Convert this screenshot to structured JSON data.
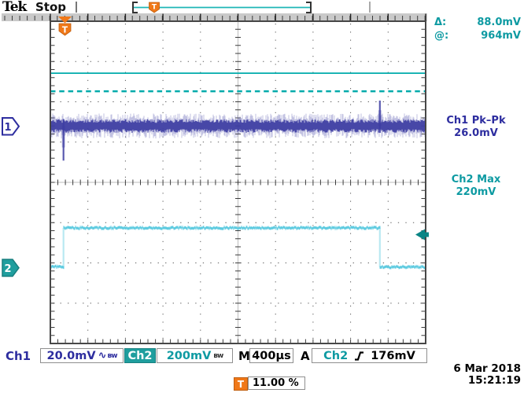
{
  "header": {
    "logo": "Tek",
    "status": "Stop",
    "record_trigger_label": "T"
  },
  "cursor_readout": {
    "delta_label": "Δ:",
    "delta_value": "88.0mV",
    "at_label": "@:",
    "at_value": "964mV"
  },
  "measurements": {
    "ch1_label": "Ch1 Pk–Pk",
    "ch1_value": "26.0mV",
    "ch2_label": "Ch2 Max",
    "ch2_value": "220mV"
  },
  "channel_badges": {
    "ch1": "1",
    "ch2": "2"
  },
  "trigger_flag_label": "T",
  "status_bar": {
    "ch1_name": "Ch1",
    "ch1_scale": "20.0mV",
    "ch1_coupling_icon": "∿",
    "ch1_bandwidth_icon": "ʙᴡ",
    "ch2_name": "Ch2",
    "ch2_scale": "200mV",
    "ch2_bandwidth_icon": "ʙᴡ",
    "timebase_prefix": "M",
    "timebase": "400µs",
    "trigger_mode": "A",
    "trigger_source": "Ch2",
    "trigger_level": "176mV",
    "trigger_position_label": "T",
    "trigger_position": "11.00 %"
  },
  "datetime": {
    "date": "6 Mar 2018",
    "time": "15:21:19"
  },
  "colors": {
    "ch1": "#3d3da2",
    "ch1_halo": "rgba(95,95,180,0.38)",
    "ch2": "#55c8de",
    "ch2_edge": "#b9e9f2",
    "teal_text": "#0d9aa2",
    "teal_box": "#1f9e9e",
    "cursor": "#00abab",
    "orange": "#f07818",
    "grid": "#5a5a5a",
    "frame": "#474747"
  },
  "chart_data": {
    "type": "line",
    "title": "Oscilloscope acquisition (stopped)",
    "x_axis": {
      "time_per_div": "400µs",
      "divisions": 10
    },
    "graticule": {
      "h_divisions": 10,
      "v_divisions": 8,
      "minor_per_div": 5
    },
    "series": [
      {
        "name": "Ch1",
        "volts_per_div": "20.0mV",
        "coupling": "AC",
        "bandwidth_limit": true,
        "baseline_div_from_top": 2.6,
        "noise_halo_half_div": 0.31,
        "noise_core_half_div": 0.17,
        "neg_spike": {
          "x_div": 0.35,
          "tip_div_from_top": 3.46
        },
        "pos_spike": {
          "x_div": 8.78,
          "tip_div_from_top": 1.97
        },
        "pk_pk": "26.0mV"
      },
      {
        "name": "Ch2",
        "volts_per_div": "200mV",
        "bandwidth_limit": true,
        "low_div_from_top": 6.1,
        "high_div_from_top": 5.13,
        "rise_x_div": 0.35,
        "fall_x_div": 8.78,
        "max": "220mV"
      }
    ],
    "cursors": {
      "solid_y_div": 1.29,
      "dashed_y_div": 1.74,
      "delta": "88.0mV",
      "at": "964mV"
    },
    "trigger": {
      "source": "Ch2",
      "slope": "rising",
      "level": "176mV",
      "position_pct": 11.0,
      "level_arrow_y_div": 5.3
    }
  }
}
